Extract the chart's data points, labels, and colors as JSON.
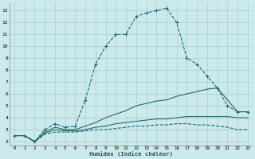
{
  "xlabel": "Humidex (Indice chaleur)",
  "bg_color": "#cce9ec",
  "grid_color": "#aacdd1",
  "line_color": "#1a6b6b",
  "xlim": [
    -0.5,
    23.5
  ],
  "ylim": [
    1.7,
    13.7
  ],
  "yticks": [
    2,
    3,
    4,
    5,
    6,
    7,
    8,
    9,
    10,
    11,
    12,
    13
  ],
  "xticks": [
    0,
    1,
    2,
    3,
    4,
    5,
    6,
    7,
    8,
    9,
    10,
    11,
    12,
    13,
    14,
    15,
    16,
    17,
    18,
    19,
    20,
    21,
    22,
    23
  ],
  "series": [
    {
      "x": [
        0,
        1,
        2,
        3,
        4,
        5,
        6,
        7,
        8,
        9,
        10,
        11,
        12,
        13,
        14,
        15,
        16,
        17,
        18,
        19,
        20,
        21,
        22,
        23
      ],
      "y": [
        2.5,
        2.5,
        2.0,
        3.0,
        3.5,
        3.2,
        3.3,
        5.5,
        8.5,
        10.0,
        11.0,
        11.0,
        12.5,
        12.8,
        13.0,
        13.2,
        12.0,
        9.0,
        8.5,
        7.5,
        6.5,
        5.0,
        4.5,
        4.5
      ],
      "linestyle": "--",
      "marker": true
    },
    {
      "x": [
        0,
        1,
        2,
        3,
        4,
        5,
        6,
        7,
        8,
        9,
        10,
        11,
        12,
        13,
        14,
        15,
        16,
        17,
        18,
        19,
        20,
        21,
        22,
        23
      ],
      "y": [
        2.5,
        2.5,
        2.0,
        2.8,
        3.2,
        3.0,
        3.0,
        3.3,
        3.6,
        4.0,
        4.3,
        4.6,
        5.0,
        5.2,
        5.4,
        5.5,
        5.8,
        6.0,
        6.2,
        6.4,
        6.5,
        5.5,
        4.5,
        4.5
      ],
      "linestyle": "-",
      "marker": false
    },
    {
      "x": [
        0,
        1,
        2,
        3,
        4,
        5,
        6,
        7,
        8,
        9,
        10,
        11,
        12,
        13,
        14,
        15,
        16,
        17,
        18,
        19,
        20,
        21,
        22,
        23
      ],
      "y": [
        2.5,
        2.5,
        2.0,
        2.7,
        3.0,
        2.9,
        2.9,
        3.0,
        3.2,
        3.3,
        3.5,
        3.6,
        3.7,
        3.8,
        3.9,
        3.9,
        4.0,
        4.1,
        4.1,
        4.1,
        4.1,
        4.1,
        4.0,
        4.0
      ],
      "linestyle": "-",
      "marker": false
    },
    {
      "x": [
        0,
        1,
        2,
        3,
        4,
        5,
        6,
        7,
        8,
        9,
        10,
        11,
        12,
        13,
        14,
        15,
        16,
        17,
        18,
        19,
        20,
        21,
        22,
        23
      ],
      "y": [
        2.5,
        2.5,
        2.0,
        2.6,
        2.8,
        2.8,
        2.8,
        2.9,
        3.0,
        3.0,
        3.1,
        3.2,
        3.3,
        3.3,
        3.4,
        3.4,
        3.5,
        3.5,
        3.4,
        3.4,
        3.3,
        3.2,
        3.0,
        3.0
      ],
      "linestyle": "--",
      "marker": false
    }
  ]
}
